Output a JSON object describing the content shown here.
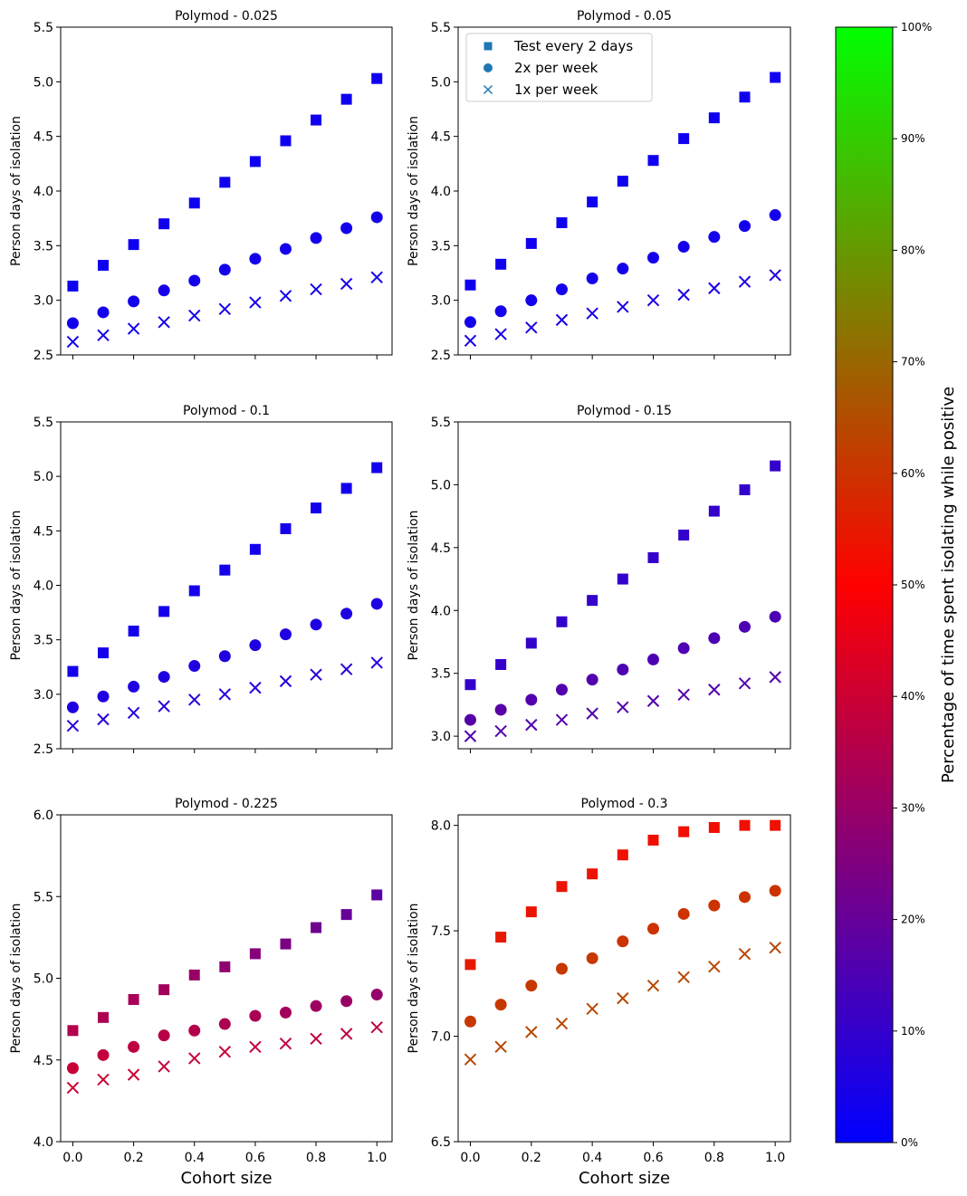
{
  "figure": {
    "x_ticks": [
      0.0,
      0.2,
      0.4,
      0.6,
      0.8,
      1.0
    ],
    "x_tick_labels": [
      "0.0",
      "0.2",
      "0.4",
      "0.6",
      "0.8",
      "1.0"
    ],
    "xlim": [
      -0.04,
      1.05
    ],
    "xlabel": "Cohort size",
    "ylabel": "Person days of isolation",
    "legend": {
      "placement": "upper-left of Polymod - 0.05 panel",
      "entries": [
        {
          "label": "Test every 2 days",
          "marker": "square"
        },
        {
          "label": "2x per week",
          "marker": "circle"
        },
        {
          "label": "1x per week",
          "marker": "x"
        }
      ],
      "marker_color": "#1f77b4"
    },
    "colorbar": {
      "label": "Percentage of time spent isolating while positive",
      "range": [
        0,
        100
      ],
      "ticks": [
        0,
        10,
        20,
        30,
        40,
        50,
        60,
        70,
        80,
        90,
        100
      ],
      "tick_labels": [
        "0%",
        "10%",
        "20%",
        "30%",
        "40%",
        "50%",
        "60%",
        "70%",
        "80%",
        "90%",
        "100%"
      ],
      "color_stops": [
        "#0000ff",
        "#ff0000",
        "#00ff00"
      ]
    }
  },
  "chart_data": [
    {
      "type": "scatter",
      "title": "Polymod - 0.025",
      "x": [
        0.0,
        0.1,
        0.2,
        0.3,
        0.4,
        0.5,
        0.6,
        0.7,
        0.8,
        0.9,
        1.0
      ],
      "ylim": [
        2.5,
        5.5
      ],
      "y_ticks": [
        2.5,
        3.0,
        3.5,
        4.0,
        4.5,
        5.0,
        5.5
      ],
      "y_tick_labels": [
        "2.5",
        "3.0",
        "3.5",
        "4.0",
        "4.5",
        "5.0",
        "5.5"
      ],
      "series": [
        {
          "name": "Test every 2 days",
          "marker": "square",
          "values": [
            3.13,
            3.32,
            3.51,
            3.7,
            3.89,
            4.08,
            4.27,
            4.46,
            4.65,
            4.84,
            5.03
          ],
          "pct": [
            3,
            3,
            3,
            3,
            3,
            3,
            3,
            3,
            3,
            3,
            3
          ]
        },
        {
          "name": "2x per week",
          "marker": "circle",
          "values": [
            2.79,
            2.89,
            2.99,
            3.09,
            3.18,
            3.28,
            3.38,
            3.47,
            3.57,
            3.66,
            3.76
          ],
          "pct": [
            4,
            4,
            4,
            4,
            4,
            4,
            4,
            4,
            4,
            4,
            4
          ]
        },
        {
          "name": "1x per week",
          "marker": "x",
          "values": [
            2.62,
            2.68,
            2.74,
            2.8,
            2.86,
            2.92,
            2.98,
            3.04,
            3.1,
            3.15,
            3.21
          ],
          "pct": [
            4,
            4,
            4,
            4,
            4,
            4,
            4,
            4,
            4,
            4,
            4
          ]
        }
      ]
    },
    {
      "type": "scatter",
      "title": "Polymod - 0.05",
      "x": [
        0.0,
        0.1,
        0.2,
        0.3,
        0.4,
        0.5,
        0.6,
        0.7,
        0.8,
        0.9,
        1.0
      ],
      "ylim": [
        2.5,
        5.5
      ],
      "y_ticks": [
        2.5,
        3.0,
        3.5,
        4.0,
        4.5,
        5.0,
        5.5
      ],
      "y_tick_labels": [
        "2.5",
        "3.0",
        "3.5",
        "4.0",
        "4.5",
        "5.0",
        "5.5"
      ],
      "series": [
        {
          "name": "Test every 2 days",
          "marker": "square",
          "values": [
            3.14,
            3.33,
            3.52,
            3.71,
            3.9,
            4.09,
            4.28,
            4.48,
            4.67,
            4.86,
            5.04
          ],
          "pct": [
            3,
            3,
            3,
            3,
            3,
            3,
            3,
            3,
            3,
            3,
            3
          ]
        },
        {
          "name": "2x per week",
          "marker": "circle",
          "values": [
            2.8,
            2.9,
            3.0,
            3.1,
            3.2,
            3.29,
            3.39,
            3.49,
            3.58,
            3.68,
            3.78
          ],
          "pct": [
            4,
            4,
            4,
            4,
            4,
            4,
            4,
            4,
            4,
            4,
            4
          ]
        },
        {
          "name": "1x per week",
          "marker": "x",
          "values": [
            2.63,
            2.69,
            2.75,
            2.82,
            2.88,
            2.94,
            3.0,
            3.05,
            3.11,
            3.17,
            3.23
          ],
          "pct": [
            5,
            5,
            5,
            5,
            5,
            5,
            5,
            5,
            5,
            5,
            5
          ]
        }
      ]
    },
    {
      "type": "scatter",
      "title": "Polymod - 0.1",
      "x": [
        0.0,
        0.1,
        0.2,
        0.3,
        0.4,
        0.5,
        0.6,
        0.7,
        0.8,
        0.9,
        1.0
      ],
      "ylim": [
        2.5,
        5.5
      ],
      "y_ticks": [
        2.5,
        3.0,
        3.5,
        4.0,
        4.5,
        5.0,
        5.5
      ],
      "y_tick_labels": [
        "2.5",
        "3.0",
        "3.5",
        "4.0",
        "4.5",
        "5.0",
        "5.5"
      ],
      "series": [
        {
          "name": "Test every 2 days",
          "marker": "square",
          "values": [
            3.21,
            3.38,
            3.58,
            3.76,
            3.95,
            4.14,
            4.33,
            4.52,
            4.71,
            4.89,
            5.08
          ],
          "pct": [
            4,
            4,
            4,
            4,
            4,
            4,
            4,
            4,
            4,
            4,
            4
          ]
        },
        {
          "name": "2x per week",
          "marker": "circle",
          "values": [
            2.88,
            2.98,
            3.07,
            3.16,
            3.26,
            3.35,
            3.45,
            3.55,
            3.64,
            3.74,
            3.83
          ],
          "pct": [
            6,
            6,
            6,
            6,
            6,
            6,
            6,
            6,
            6,
            6,
            6
          ]
        },
        {
          "name": "1x per week",
          "marker": "x",
          "values": [
            2.71,
            2.77,
            2.83,
            2.89,
            2.95,
            3.0,
            3.06,
            3.12,
            3.18,
            3.23,
            3.29
          ],
          "pct": [
            7,
            7,
            7,
            7,
            7,
            7,
            7,
            7,
            7,
            7,
            7
          ]
        }
      ]
    },
    {
      "type": "scatter",
      "title": "Polymod - 0.15",
      "x": [
        0.0,
        0.1,
        0.2,
        0.3,
        0.4,
        0.5,
        0.6,
        0.7,
        0.8,
        0.9,
        1.0
      ],
      "ylim": [
        2.9,
        5.5
      ],
      "y_ticks": [
        3.0,
        3.5,
        4.0,
        4.5,
        5.0,
        5.5
      ],
      "y_tick_labels": [
        "3.0",
        "3.5",
        "4.0",
        "4.5",
        "5.0",
        "5.5"
      ],
      "series": [
        {
          "name": "Test every 2 days",
          "marker": "square",
          "values": [
            3.41,
            3.57,
            3.74,
            3.91,
            4.08,
            4.25,
            4.42,
            4.6,
            4.79,
            4.96,
            5.15
          ],
          "pct": [
            10,
            10,
            10,
            10,
            10,
            10,
            10,
            10,
            10,
            10,
            10
          ]
        },
        {
          "name": "2x per week",
          "marker": "circle",
          "values": [
            3.13,
            3.21,
            3.29,
            3.37,
            3.45,
            3.53,
            3.61,
            3.7,
            3.78,
            3.87,
            3.95
          ],
          "pct": [
            17,
            17,
            16,
            16,
            16,
            15,
            15,
            15,
            15,
            15,
            15
          ]
        },
        {
          "name": "1x per week",
          "marker": "x",
          "values": [
            3.0,
            3.04,
            3.09,
            3.13,
            3.18,
            3.23,
            3.28,
            3.33,
            3.37,
            3.42,
            3.47
          ],
          "pct": [
            16,
            16,
            16,
            16,
            16,
            16,
            16,
            16,
            16,
            16,
            16
          ]
        }
      ]
    },
    {
      "type": "scatter",
      "title": "Polymod - 0.225",
      "x": [
        0.0,
        0.1,
        0.2,
        0.3,
        0.4,
        0.5,
        0.6,
        0.7,
        0.8,
        0.9,
        1.0
      ],
      "ylim": [
        4.0,
        6.0
      ],
      "y_ticks": [
        4.0,
        4.5,
        5.0,
        5.5,
        6.0
      ],
      "y_tick_labels": [
        "4.0",
        "4.5",
        "5.0",
        "5.5",
        "6.0"
      ],
      "series": [
        {
          "name": "Test every 2 days",
          "marker": "square",
          "values": [
            4.68,
            4.76,
            4.87,
            4.93,
            5.02,
            5.07,
            5.15,
            5.21,
            5.31,
            5.39,
            5.51
          ],
          "pct": [
            35,
            34,
            33,
            32,
            30,
            28,
            26,
            24,
            22,
            20,
            18
          ]
        },
        {
          "name": "2x per week",
          "marker": "circle",
          "values": [
            4.45,
            4.53,
            4.58,
            4.65,
            4.68,
            4.72,
            4.77,
            4.79,
            4.83,
            4.86,
            4.9
          ],
          "pct": [
            39,
            38,
            37,
            36,
            35,
            34,
            33,
            32,
            31,
            30,
            29
          ]
        },
        {
          "name": "1x per week",
          "marker": "x",
          "values": [
            4.33,
            4.38,
            4.41,
            4.46,
            4.51,
            4.55,
            4.58,
            4.6,
            4.63,
            4.66,
            4.7
          ],
          "pct": [
            40,
            40,
            40,
            39,
            39,
            39,
            38,
            38,
            38,
            37,
            37
          ]
        }
      ]
    },
    {
      "type": "scatter",
      "title": "Polymod - 0.3",
      "x": [
        0.0,
        0.1,
        0.2,
        0.3,
        0.4,
        0.5,
        0.6,
        0.7,
        0.8,
        0.9,
        1.0
      ],
      "ylim": [
        6.5,
        8.05
      ],
      "y_ticks": [
        6.5,
        7.0,
        7.5,
        8.0
      ],
      "y_tick_labels": [
        "6.5",
        "7.0",
        "7.5",
        "8.0"
      ],
      "series": [
        {
          "name": "Test every 2 days",
          "marker": "square",
          "values": [
            7.34,
            7.47,
            7.59,
            7.71,
            7.77,
            7.86,
            7.93,
            7.97,
            7.99,
            8.0,
            8.0
          ],
          "pct": [
            55,
            55,
            54,
            54,
            54,
            53,
            53,
            53,
            53,
            53,
            53
          ]
        },
        {
          "name": "2x per week",
          "marker": "circle",
          "values": [
            7.07,
            7.15,
            7.24,
            7.32,
            7.37,
            7.45,
            7.51,
            7.58,
            7.62,
            7.66,
            7.69
          ],
          "pct": [
            61,
            61,
            61,
            61,
            61,
            60,
            60,
            60,
            60,
            60,
            60
          ]
        },
        {
          "name": "1x per week",
          "marker": "x",
          "values": [
            6.89,
            6.95,
            7.02,
            7.06,
            7.13,
            7.18,
            7.24,
            7.28,
            7.33,
            7.39,
            7.42
          ],
          "pct": [
            64,
            64,
            64,
            64,
            64,
            64,
            64,
            64,
            64,
            64,
            64
          ]
        }
      ]
    }
  ]
}
